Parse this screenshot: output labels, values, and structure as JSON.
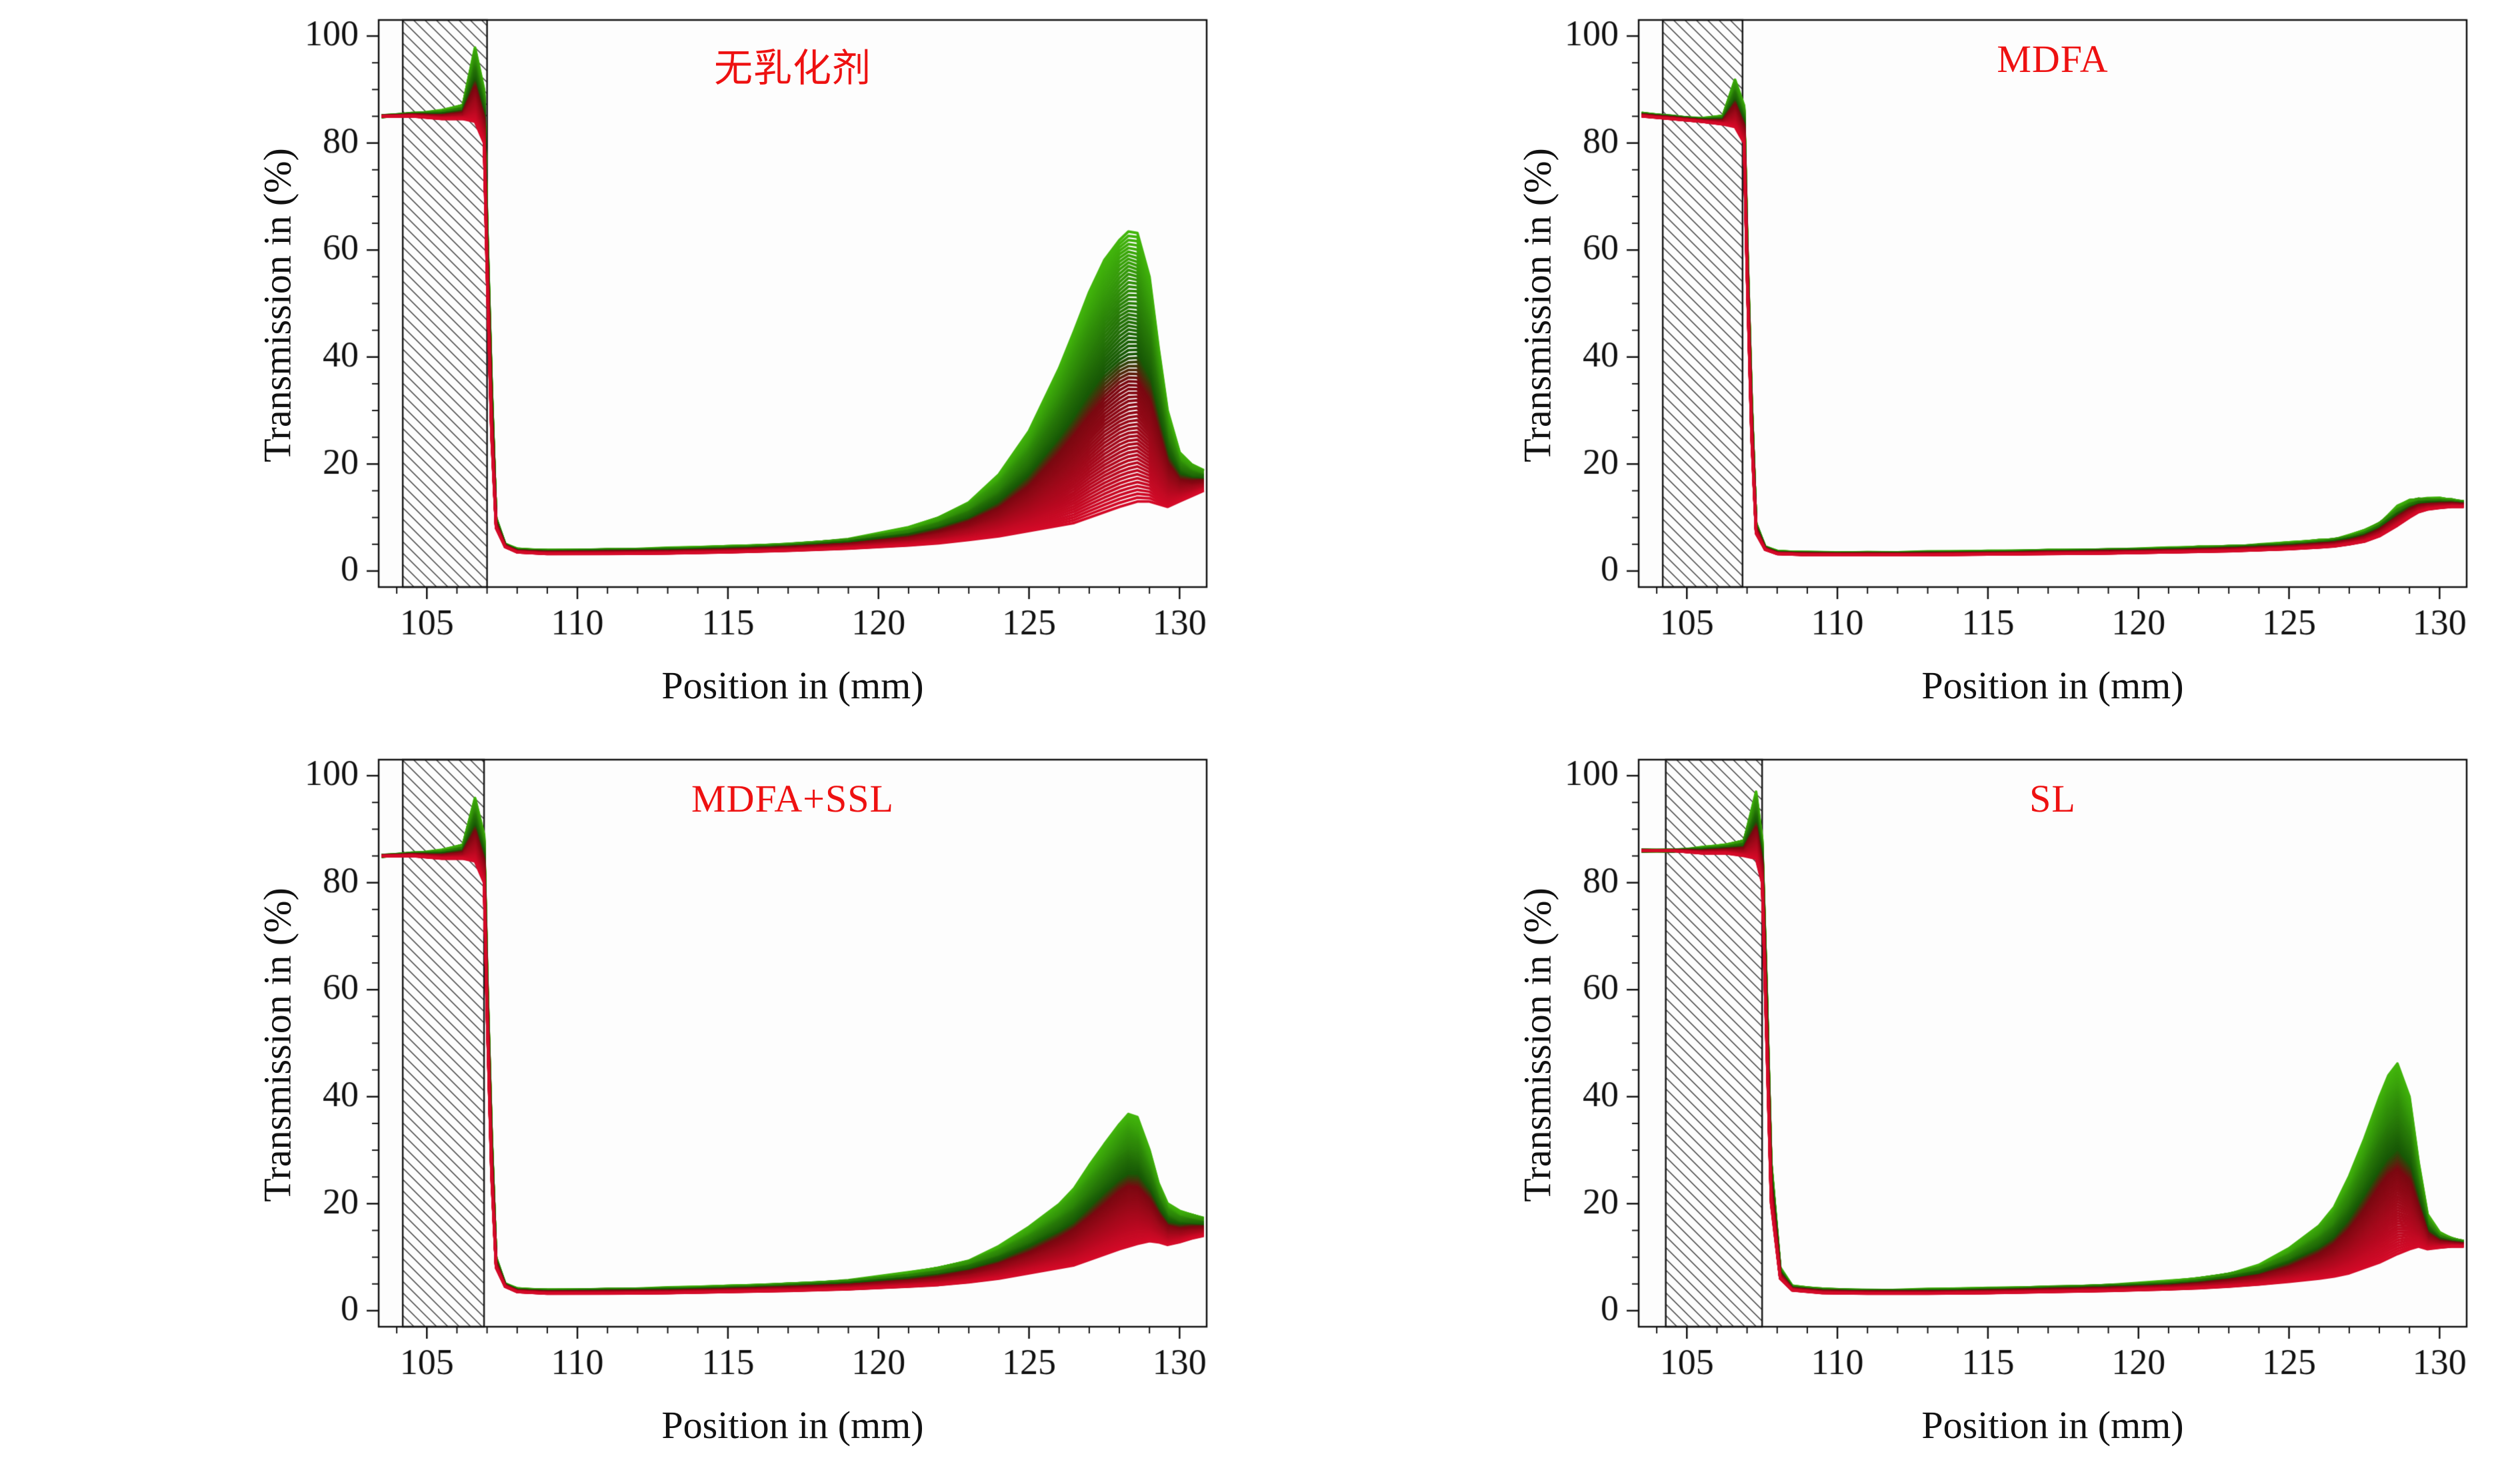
{
  "figure": {
    "background": "#ffffff",
    "accent_red": "#ee1111",
    "profile_color_first": "#d40a28",
    "profile_color_last": "#42b60c"
  },
  "chart_data": [
    {
      "type": "line",
      "title": "无乳化剂",
      "title_color": "#ee1111",
      "xlabel": "Position in (mm)",
      "ylabel": "Transmission in (%)",
      "xrange": [
        103.4,
        130.9
      ],
      "yrange": [
        -3,
        103
      ],
      "xticks": [
        105,
        110,
        115,
        120,
        125,
        130
      ],
      "yticks": [
        0,
        20,
        40,
        60,
        80,
        100
      ],
      "xminor_step": 1,
      "yminor_step": 5,
      "grid": "off",
      "legend": "none",
      "hatch_region": [
        104.2,
        107.0
      ],
      "n_profiles": 70,
      "profile_color_first": "#d40a28",
      "profile_color_last": "#42b60c",
      "x": [
        103.5,
        104.5,
        105.5,
        106.2,
        106.6,
        106.9,
        107.0,
        107.15,
        107.3,
        107.6,
        108,
        109,
        111,
        113,
        115,
        117,
        119,
        121,
        122,
        123,
        124,
        125,
        126,
        126.5,
        127,
        127.5,
        128,
        128.3,
        128.6,
        129,
        129.3,
        129.6,
        130,
        130.4,
        130.8
      ],
      "series": [
        {
          "name": "first-profile-red",
          "values": [
            85,
            85,
            84.5,
            84.5,
            84,
            80,
            55,
            25,
            8,
            4.5,
            3.5,
            3.2,
            3.2,
            3.3,
            3.5,
            3.8,
            4.2,
            4.8,
            5.2,
            5.8,
            6.5,
            7.5,
            8.5,
            9,
            10,
            11,
            12,
            12.5,
            13,
            13,
            12.5,
            12,
            13,
            14,
            15
          ]
        },
        {
          "name": "last-profile-green",
          "values": [
            85,
            85.5,
            86,
            87,
            98,
            90,
            65,
            35,
            10,
            5,
            4,
            3.8,
            4,
            4.2,
            4.5,
            5,
            6,
            8,
            10,
            13,
            18,
            26,
            38,
            45,
            52,
            58,
            62,
            63.5,
            63,
            55,
            42,
            30,
            22,
            20,
            19
          ]
        }
      ]
    },
    {
      "type": "line",
      "title": "MDFA",
      "title_color": "#ee1111",
      "xlabel": "Position in (mm)",
      "ylabel": "Transmission in (%)",
      "xrange": [
        103.4,
        130.9
      ],
      "yrange": [
        -3,
        103
      ],
      "xticks": [
        105,
        110,
        115,
        120,
        125,
        130
      ],
      "yticks": [
        0,
        20,
        40,
        60,
        80,
        100
      ],
      "xminor_step": 1,
      "yminor_step": 5,
      "grid": "off",
      "legend": "none",
      "hatch_region": [
        104.2,
        106.85
      ],
      "n_profiles": 70,
      "profile_color_first": "#d40a28",
      "profile_color_last": "#42b60c",
      "x": [
        103.5,
        104.5,
        105.5,
        106.2,
        106.6,
        106.9,
        107.0,
        107.15,
        107.3,
        107.6,
        108,
        109,
        111,
        113,
        115,
        117,
        119,
        121,
        122,
        123,
        124,
        125,
        126,
        126.5,
        127,
        127.5,
        128,
        128.3,
        128.6,
        129,
        129.3,
        129.6,
        130,
        130.4,
        130.8
      ],
      "series": [
        {
          "name": "first-profile-red",
          "values": [
            85,
            84.5,
            84,
            83.5,
            83,
            80,
            55,
            25,
            7,
            4,
            3.2,
            3,
            3,
            3,
            3.1,
            3.2,
            3.3,
            3.5,
            3.6,
            3.7,
            3.9,
            4.1,
            4.4,
            4.6,
            5,
            5.5,
            6.5,
            7.5,
            8.5,
            10,
            11,
            11.5,
            11.8,
            12,
            12
          ]
        },
        {
          "name": "last-profile-green",
          "values": [
            85.5,
            85,
            84.5,
            85,
            92,
            87,
            62,
            32,
            9,
            4.5,
            3.6,
            3.4,
            3.4,
            3.5,
            3.6,
            3.8,
            4,
            4.2,
            4.4,
            4.6,
            4.9,
            5.2,
            5.7,
            6,
            6.6,
            7.5,
            9,
            10.5,
            12,
            13.2,
            13.6,
            13.6,
            13.5,
            13.3,
            13
          ]
        }
      ]
    },
    {
      "type": "line",
      "title": "MDFA+SSL",
      "title_color": "#ee1111",
      "xlabel": "Position in (mm)",
      "ylabel": "Transmission in (%)",
      "xrange": [
        103.4,
        130.9
      ],
      "yrange": [
        -3,
        103
      ],
      "xticks": [
        105,
        110,
        115,
        120,
        125,
        130
      ],
      "yticks": [
        0,
        20,
        40,
        60,
        80,
        100
      ],
      "xminor_step": 1,
      "yminor_step": 5,
      "grid": "off",
      "legend": "none",
      "hatch_region": [
        104.2,
        106.9
      ],
      "n_profiles": 70,
      "profile_color_first": "#d40a28",
      "profile_color_last": "#42b60c",
      "x": [
        103.5,
        104.5,
        105.5,
        106.2,
        106.6,
        106.9,
        107.0,
        107.15,
        107.3,
        107.6,
        108,
        109,
        111,
        113,
        115,
        117,
        119,
        121,
        122,
        123,
        124,
        125,
        126,
        126.5,
        127,
        127.5,
        128,
        128.3,
        128.6,
        129,
        129.3,
        129.6,
        130,
        130.4,
        130.8
      ],
      "series": [
        {
          "name": "first-profile-red",
          "values": [
            85,
            85,
            84.5,
            84.5,
            84,
            80,
            55,
            25,
            8,
            4.5,
            3.5,
            3.2,
            3.2,
            3.3,
            3.5,
            3.7,
            4,
            4.5,
            4.8,
            5.3,
            6,
            7,
            8,
            8.5,
            9.5,
            10.5,
            11.5,
            12,
            12.5,
            13,
            12.8,
            12.3,
            12.8,
            13.5,
            14
          ]
        },
        {
          "name": "last-profile-green",
          "values": [
            85,
            85.5,
            86,
            87,
            96,
            89,
            63,
            33,
            10,
            5,
            4,
            3.8,
            4,
            4.2,
            4.5,
            5,
            5.7,
            7,
            8,
            9.5,
            12,
            15.5,
            20,
            23,
            27,
            31,
            35,
            36.8,
            36,
            30,
            24,
            20,
            18.5,
            18,
            17.5
          ]
        }
      ]
    },
    {
      "type": "line",
      "title": "SL",
      "title_color": "#ee1111",
      "xlabel": "Position in (mm)",
      "ylabel": "Transmission in (%)",
      "xrange": [
        103.4,
        130.9
      ],
      "yrange": [
        -3,
        103
      ],
      "xticks": [
        105,
        110,
        115,
        120,
        125,
        130
      ],
      "yticks": [
        0,
        20,
        40,
        60,
        80,
        100
      ],
      "xminor_step": 1,
      "yminor_step": 5,
      "grid": "off",
      "legend": "none",
      "hatch_region": [
        104.3,
        107.5
      ],
      "n_profiles": 70,
      "profile_color_first": "#d40a28",
      "profile_color_last": "#42b60c",
      "x": [
        103.5,
        104.5,
        105.5,
        106.3,
        106.9,
        107.3,
        107.5,
        107.65,
        107.8,
        108.1,
        108.5,
        109.5,
        111,
        113,
        115,
        117,
        119,
        121,
        122,
        123,
        124,
        125,
        126,
        126.5,
        127,
        127.5,
        128,
        128.3,
        128.6,
        129,
        129.3,
        129.6,
        130,
        130.4,
        130.8
      ],
      "series": [
        {
          "name": "first-profile-red",
          "values": [
            86,
            86,
            85.5,
            85.5,
            85,
            84.5,
            80,
            50,
            20,
            6,
            3.8,
            3.3,
            3.2,
            3.2,
            3.3,
            3.5,
            3.7,
            4,
            4.2,
            4.5,
            4.9,
            5.4,
            6,
            6.4,
            7,
            8,
            9,
            9.8,
            10.6,
            11.5,
            12,
            11.5,
            11.8,
            12,
            12
          ]
        },
        {
          "name": "last-profile-green",
          "values": [
            86,
            86,
            86.5,
            87,
            88,
            97,
            88,
            60,
            28,
            8,
            4.5,
            4,
            3.8,
            3.9,
            4.1,
            4.4,
            4.8,
            5.4,
            6,
            7,
            8.5,
            11.5,
            16,
            19.5,
            25,
            32,
            40,
            44,
            46,
            40,
            28,
            18,
            14.5,
            13.5,
            13
          ]
        }
      ]
    }
  ]
}
